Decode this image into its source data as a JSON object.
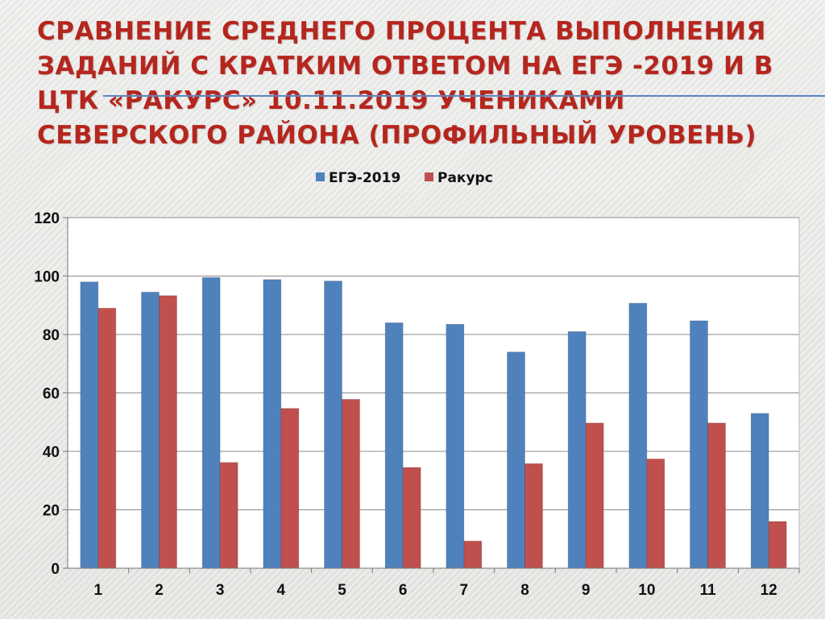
{
  "title": {
    "lines": [
      "СРАВНЕНИЕ СРЕДНЕГО ПРОЦЕНТА ВЫПОЛНЕНИЯ",
      "ЗАДАНИЙ  С КРАТКИМ ОТВЕТОМ НА ЕГЭ -2019 И В",
      "ЦТК «РАКУРС»  10.11.2019 УЧЕНИКАМИ",
      "СЕВЕРСКОГО РАЙОНА (ПРОФИЛЬНЫЙ УРОВЕНЬ)"
    ],
    "color": "#b5261e"
  },
  "chart_data": {
    "type": "bar",
    "categories": [
      "1",
      "2",
      "3",
      "4",
      "5",
      "6",
      "7",
      "8",
      "9",
      "10",
      "11",
      "12"
    ],
    "series": [
      {
        "name": "ЕГЭ-2019",
        "color": "#4f81bd",
        "values": [
          98,
          94.5,
          99.5,
          98.8,
          98.3,
          84,
          83.5,
          74,
          81,
          90.7,
          84.7,
          53
        ]
      },
      {
        "name": "Ракурс",
        "color": "#c0504d",
        "values": [
          89,
          93.3,
          36.2,
          54.7,
          57.8,
          34.5,
          9.3,
          35.8,
          49.7,
          37.4,
          49.7,
          16
        ]
      }
    ],
    "ylim": [
      0,
      120
    ],
    "yticks": [
      0,
      20,
      40,
      60,
      80,
      100,
      120
    ],
    "grid": true,
    "legend_position": "top"
  }
}
